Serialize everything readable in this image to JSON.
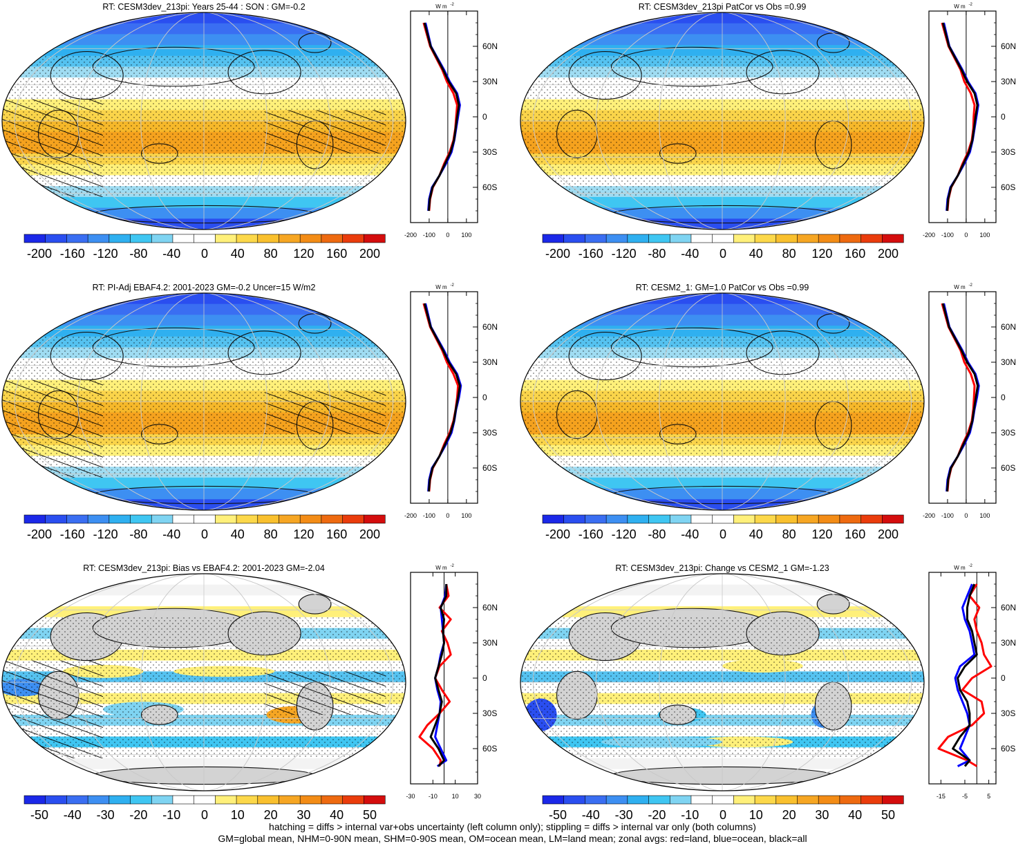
{
  "footer": {
    "line1": "hatching = diffs > internal var+obs uncertainty (left column only); stippling = diffs > internal var only (both columns)",
    "line2": "GM=global mean, NHM=0-90N mean, SHM=0-90S mean, OM=ocean mean, LM=land mean; zonal avgs: red=land, blue=ocean, black=all"
  },
  "colors": {
    "land_grey": "#d3d3d3",
    "line_land": "#ff0000",
    "line_ocean": "#0000ff",
    "line_all": "#000000",
    "palette": [
      "#1b28e8",
      "#2a4ef0",
      "#3a6ef2",
      "#3d8ff2",
      "#2fb0f0",
      "#3fc6f2",
      "#7fd4f2",
      "#ffffff",
      "#ffffff",
      "#fff07a",
      "#fcd84a",
      "#f9c02e",
      "#f6a623",
      "#f38c16",
      "#ee6a10",
      "#ea3c0c",
      "#d40d0d"
    ]
  },
  "chart_data": [
    {
      "type": "heatmap",
      "title": "RT: CESM3dev_213pi: Years 25-44 : SON : GM=-0.2",
      "colorbar_ticks": [
        "-200",
        "-160",
        "-120",
        "-80",
        "-40",
        "0",
        "40",
        "80",
        "120",
        "160",
        "200"
      ],
      "zonal_plot": {
        "type": "line",
        "unit_label": "W m",
        "unit_sup": "-2",
        "lat_ticks": [
          "60N",
          "30N",
          "0",
          "30S",
          "60S"
        ],
        "x_ticks": [
          "-200",
          "-100",
          "0",
          "100"
        ],
        "xlim": [
          -200,
          160
        ],
        "latitudes": [
          80,
          60,
          40,
          30,
          20,
          10,
          0,
          -10,
          -20,
          -30,
          -40,
          -50,
          -60,
          -70,
          -80
        ],
        "series": [
          {
            "values": [
              -130,
              -95,
              -30,
              -5,
              30,
              50,
              45,
              40,
              30,
              10,
              -20,
              -45,
              -80,
              -95,
              -100
            ]
          },
          {
            "values": [
              -120,
              -90,
              -20,
              10,
              50,
              65,
              55,
              45,
              35,
              20,
              -10,
              -45,
              -85,
              -100,
              -105
            ]
          },
          {
            "values": [
              -125,
              -92,
              -25,
              5,
              45,
              60,
              50,
              42,
              33,
              15,
              -15,
              -45,
              -82,
              -97,
              -102
            ]
          }
        ]
      }
    },
    {
      "type": "heatmap",
      "title": "RT: CESM3dev_213pi PatCor vs Obs =0.99",
      "colorbar_ticks": [
        "-200",
        "-160",
        "-120",
        "-80",
        "-40",
        "0",
        "40",
        "80",
        "120",
        "160",
        "200"
      ],
      "zonal_plot": {
        "type": "line",
        "unit_label": "W m",
        "unit_sup": "-2",
        "lat_ticks": [
          "60N",
          "30N",
          "0",
          "30S",
          "60S"
        ],
        "x_ticks": [
          "-200",
          "-100",
          "0",
          "100"
        ],
        "xlim": [
          -200,
          160
        ],
        "latitudes": [
          80,
          60,
          40,
          30,
          20,
          10,
          0,
          -10,
          -20,
          -30,
          -40,
          -50,
          -60,
          -70,
          -80
        ],
        "series": [
          {
            "values": [
              -130,
              -95,
              -30,
              -10,
              25,
              45,
              40,
              38,
              30,
              10,
              -20,
              -45,
              -80,
              -95,
              -100
            ]
          },
          {
            "values": [
              -120,
              -90,
              -20,
              10,
              50,
              65,
              55,
              45,
              35,
              20,
              -10,
              -45,
              -85,
              -100,
              -105
            ]
          },
          {
            "values": [
              -125,
              -92,
              -25,
              5,
              45,
              60,
              50,
              42,
              33,
              15,
              -15,
              -45,
              -82,
              -97,
              -102
            ]
          }
        ]
      }
    },
    {
      "type": "heatmap",
      "title": "RT: PI-Adj EBAF4.2: 2001-2023 GM=-0.2 Uncer=15 W/m2",
      "colorbar_ticks": [
        "-200",
        "-160",
        "-120",
        "-80",
        "-40",
        "0",
        "40",
        "80",
        "120",
        "160",
        "200"
      ],
      "zonal_plot": {
        "type": "line",
        "unit_label": "W m",
        "unit_sup": "-2",
        "lat_ticks": [
          "60N",
          "30N",
          "0",
          "30S",
          "60S"
        ],
        "x_ticks": [
          "-200",
          "-100",
          "0",
          "100"
        ],
        "xlim": [
          -200,
          160
        ],
        "latitudes": [
          80,
          60,
          40,
          30,
          20,
          10,
          0,
          -10,
          -20,
          -30,
          -40,
          -50,
          -60,
          -70,
          -80
        ],
        "series": [
          {
            "values": [
              -130,
              -95,
              -30,
              -5,
              30,
              55,
              50,
              42,
              30,
              10,
              -20,
              -45,
              -80,
              -95,
              -100
            ]
          },
          {
            "values": [
              -120,
              -90,
              -20,
              10,
              50,
              70,
              60,
              45,
              35,
              20,
              -10,
              -45,
              -85,
              -100,
              -105
            ]
          },
          {
            "values": [
              -125,
              -92,
              -25,
              5,
              45,
              65,
              55,
              43,
              33,
              15,
              -15,
              -45,
              -82,
              -97,
              -102
            ]
          }
        ]
      }
    },
    {
      "type": "heatmap",
      "title": "RT: CESM2_1: GM=1.0 PatCor vs Obs =0.99",
      "colorbar_ticks": [
        "-200",
        "-160",
        "-120",
        "-80",
        "-40",
        "0",
        "40",
        "80",
        "120",
        "160",
        "200"
      ],
      "zonal_plot": {
        "type": "line",
        "unit_label": "W m",
        "unit_sup": "-2",
        "lat_ticks": [
          "60N",
          "30N",
          "0",
          "30S",
          "60S"
        ],
        "x_ticks": [
          "-200",
          "-100",
          "0",
          "100"
        ],
        "xlim": [
          -200,
          160
        ],
        "latitudes": [
          80,
          60,
          40,
          30,
          20,
          10,
          0,
          -10,
          -20,
          -30,
          -40,
          -50,
          -60,
          -70,
          -80
        ],
        "series": [
          {
            "values": [
              -130,
              -95,
              -30,
              -10,
              25,
              45,
              42,
              38,
              30,
              10,
              -20,
              -45,
              -80,
              -95,
              -100
            ]
          },
          {
            "values": [
              -120,
              -90,
              -20,
              10,
              50,
              68,
              58,
              45,
              35,
              20,
              -10,
              -45,
              -85,
              -100,
              -105
            ]
          },
          {
            "values": [
              -125,
              -92,
              -25,
              5,
              45,
              62,
              52,
              42,
              33,
              15,
              -15,
              -45,
              -82,
              -97,
              -102
            ]
          }
        ]
      }
    },
    {
      "type": "heatmap",
      "title": "RT: CESM3dev_213pi: Bias vs EBAF4.2: 2001-2023  GM=-2.04",
      "colorbar_ticks": [
        "-50",
        "-40",
        "-30",
        "-20",
        "-10",
        "0",
        "10",
        "20",
        "30",
        "40",
        "50"
      ],
      "zonal_plot": {
        "type": "line",
        "unit_label": "W m",
        "unit_sup": "-2",
        "lat_ticks": [
          "60N",
          "30N",
          "0",
          "30S",
          "60S"
        ],
        "x_ticks": [
          "-30",
          "-10",
          "10",
          "30"
        ],
        "xlim": [
          -30,
          30
        ],
        "latitudes": [
          80,
          70,
          60,
          50,
          40,
          30,
          20,
          10,
          0,
          -10,
          -20,
          -30,
          -40,
          -50,
          -60,
          -70,
          -75
        ],
        "series": [
          {
            "values": [
              2,
              4,
              -4,
              6,
              -2,
              3,
              6,
              -4,
              -8,
              -2,
              5,
              -4,
              -15,
              -22,
              -10,
              -3,
              -4
            ]
          },
          {
            "values": [
              2,
              1,
              -3,
              -2,
              -1,
              0,
              -3,
              -5,
              -8,
              -6,
              -3,
              -4,
              -6,
              -8,
              -3,
              2,
              -6
            ]
          },
          {
            "values": [
              2,
              2,
              -3,
              0,
              -1,
              0,
              -2,
              -5,
              -8,
              -5,
              -2,
              -4,
              -8,
              -12,
              -5,
              0,
              -5
            ]
          }
        ]
      }
    },
    {
      "type": "heatmap",
      "title": "RT: CESM3dev_213pi: Change vs CESM2_1 GM=-1.23",
      "colorbar_ticks": [
        "-50",
        "-40",
        "-30",
        "-20",
        "-10",
        "0",
        "10",
        "20",
        "30",
        "40",
        "50"
      ],
      "zonal_plot": {
        "type": "line",
        "unit_label": "W m",
        "unit_sup": "-2",
        "lat_ticks": [
          "60N",
          "30N",
          "0",
          "30S",
          "60S"
        ],
        "x_ticks": [
          "-15",
          "-5",
          "5"
        ],
        "xlim": [
          -20,
          8
        ],
        "latitudes": [
          80,
          70,
          60,
          50,
          40,
          30,
          20,
          10,
          0,
          -10,
          -20,
          -30,
          -40,
          -50,
          -60,
          -70,
          -75
        ],
        "series": [
          {
            "values": [
              0,
              -3,
              1,
              -1,
              0,
              2,
              3,
              6,
              -2,
              -6,
              2,
              3,
              -2,
              -12,
              -16,
              -4,
              0
            ]
          },
          {
            "values": [
              -2,
              -4,
              -6,
              -5,
              -3,
              -2,
              -1,
              -7,
              -9,
              -8,
              -6,
              -4,
              -3,
              -5,
              -7,
              -3,
              -8
            ]
          },
          {
            "values": [
              -1,
              -3,
              -4,
              -4,
              -2,
              -1,
              0,
              -5,
              -8,
              -7,
              -4,
              -3,
              -3,
              -7,
              -10,
              -3,
              -5
            ]
          }
        ]
      }
    }
  ]
}
